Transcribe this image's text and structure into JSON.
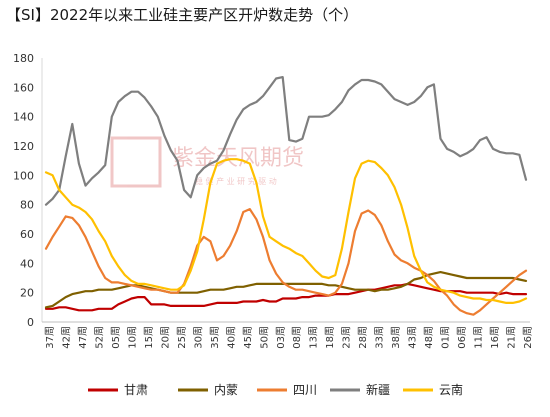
{
  "chart_data": {
    "type": "line",
    "title": "【SI】2022年以来工业硅主要产区开炉数走势（个）",
    "ylim": [
      0,
      180
    ],
    "yticks": [
      0,
      20,
      40,
      60,
      80,
      100,
      120,
      140,
      160,
      180
    ],
    "xticks": [
      "37周",
      "42周",
      "47周",
      "52周",
      "05周",
      "10周",
      "15周",
      "20周",
      "25周",
      "30周",
      "35周",
      "40周",
      "45周",
      "50周",
      "03周",
      "08周",
      "13周",
      "18周",
      "23周",
      "28周",
      "33周",
      "38周",
      "43周",
      "48周",
      "01周",
      "06周",
      "11周",
      "16周",
      "21周",
      "26周"
    ],
    "grid": false,
    "legend_position": "bottom",
    "colors": {
      "甘肃": "#c00000",
      "内蒙": "#7f6000",
      "四川": "#ed7d31",
      "新疆": "#7f7f7f",
      "云南": "#ffc000"
    },
    "series": [
      {
        "name": "甘肃",
        "values": [
          9,
          9,
          10,
          10,
          9,
          8,
          8,
          8,
          9,
          9,
          9,
          12,
          14,
          16,
          17,
          17,
          12,
          12,
          12,
          11,
          11,
          11,
          11,
          11,
          11,
          12,
          13,
          13,
          13,
          13,
          14,
          14,
          14,
          15,
          14,
          14,
          16,
          16,
          16,
          17,
          17,
          18,
          18,
          18,
          19,
          19,
          19,
          20,
          21,
          22,
          22,
          23,
          24,
          25,
          25,
          26,
          25,
          24,
          23,
          22,
          21,
          21,
          21,
          21,
          20,
          20,
          20,
          20,
          20,
          19,
          20,
          19,
          19,
          19
        ]
      },
      {
        "name": "内蒙",
        "values": [
          10,
          11,
          14,
          17,
          19,
          20,
          21,
          21,
          22,
          22,
          22,
          23,
          24,
          25,
          25,
          24,
          23,
          22,
          21,
          20,
          20,
          20,
          20,
          20,
          21,
          22,
          22,
          22,
          23,
          24,
          24,
          25,
          26,
          26,
          26,
          26,
          26,
          26,
          26,
          26,
          26,
          26,
          26,
          25,
          25,
          24,
          23,
          22,
          22,
          22,
          21,
          22,
          22,
          23,
          24,
          26,
          29,
          30,
          32,
          33,
          34,
          33,
          32,
          31,
          30,
          30,
          30,
          30,
          30,
          30,
          30,
          30,
          29,
          28
        ]
      },
      {
        "name": "四川",
        "values": [
          50,
          58,
          65,
          72,
          71,
          66,
          58,
          48,
          38,
          30,
          27,
          27,
          26,
          25,
          24,
          23,
          22,
          22,
          21,
          20,
          20,
          26,
          38,
          52,
          58,
          55,
          42,
          45,
          52,
          62,
          75,
          77,
          70,
          58,
          42,
          33,
          27,
          24,
          22,
          22,
          21,
          20,
          19,
          18,
          20,
          26,
          40,
          62,
          74,
          76,
          73,
          66,
          55,
          46,
          42,
          40,
          37,
          35,
          32,
          28,
          22,
          18,
          12,
          8,
          6,
          5,
          8,
          12,
          16,
          20,
          24,
          28,
          32,
          35
        ]
      },
      {
        "name": "新疆",
        "values": [
          80,
          84,
          90,
          113,
          135,
          108,
          93,
          98,
          102,
          107,
          140,
          150,
          154,
          157,
          157,
          153,
          147,
          140,
          127,
          117,
          110,
          90,
          85,
          100,
          105,
          108,
          110,
          117,
          128,
          138,
          145,
          148,
          150,
          154,
          160,
          166,
          167,
          124,
          123,
          125,
          140,
          140,
          140,
          141,
          145,
          150,
          158,
          162,
          165,
          165,
          164,
          162,
          157,
          152,
          150,
          148,
          150,
          154,
          160,
          162,
          125,
          118,
          116,
          113,
          115,
          118,
          124,
          126,
          118,
          116,
          115,
          115,
          114,
          97
        ]
      },
      {
        "name": "云南",
        "values": [
          102,
          100,
          90,
          85,
          80,
          78,
          75,
          70,
          62,
          55,
          45,
          38,
          32,
          28,
          26,
          26,
          25,
          24,
          23,
          22,
          22,
          25,
          35,
          48,
          70,
          95,
          108,
          110,
          111,
          111,
          110,
          108,
          95,
          72,
          58,
          55,
          52,
          50,
          47,
          45,
          40,
          35,
          31,
          30,
          32,
          50,
          75,
          98,
          108,
          110,
          109,
          105,
          100,
          92,
          80,
          64,
          45,
          35,
          27,
          24,
          22,
          21,
          20,
          18,
          17,
          16,
          16,
          15,
          15,
          14,
          13,
          13,
          14,
          16
        ]
      }
    ]
  },
  "watermark": {
    "brand": "紫金天风期货",
    "slogan": "稳 健 产 业   研 究 驱 动"
  }
}
